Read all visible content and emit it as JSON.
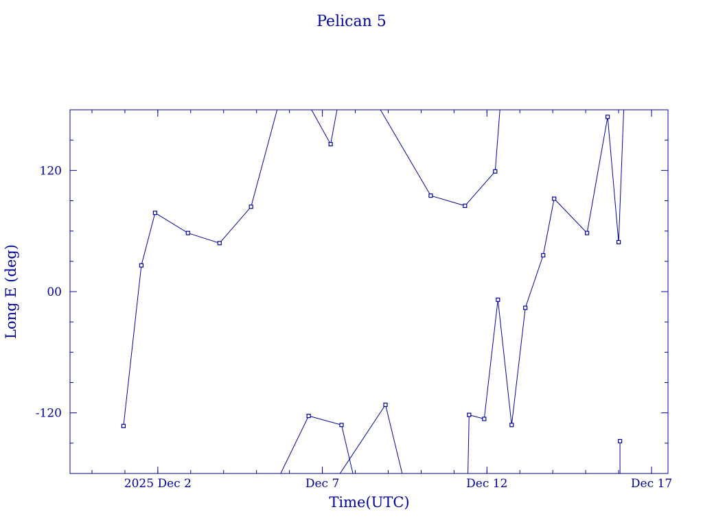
{
  "chart_data": {
    "type": "line",
    "title": "Pelican 5",
    "xlabel": "Time(UTC)",
    "ylabel": "Long E (deg)",
    "color": "#000099",
    "xlim": [
      "2025-11-29T08:00:00Z",
      "2025-12-17T12:00:00Z"
    ],
    "ylim": [
      -180,
      180
    ],
    "x_ticks": [
      {
        "t": "2025-12-02T00:00:00Z",
        "label": "2025 Dec  2"
      },
      {
        "t": "2025-12-07T00:00:00Z",
        "label": "Dec  7"
      },
      {
        "t": "2025-12-12T00:00:00Z",
        "label": "Dec 12"
      },
      {
        "t": "2025-12-17T00:00:00Z",
        "label": "Dec 17"
      }
    ],
    "y_ticks": [
      {
        "v": 120,
        "label": "120"
      },
      {
        "v": 0,
        "label": "00"
      },
      {
        "v": -120,
        "label": "-120"
      }
    ],
    "segments": [
      [
        [
          "2025-11-30T23:00:00Z",
          -133
        ],
        [
          "2025-12-01T12:00:00Z",
          26
        ],
        [
          "2025-12-01T22:00:00Z",
          78
        ],
        [
          "2025-12-02T22:00:00Z",
          58
        ],
        [
          "2025-12-03T21:00:00Z",
          48
        ],
        [
          "2025-12-04T20:00:00Z",
          84
        ],
        [
          "2025-12-05T17:00:00Z",
          190
        ]
      ],
      [
        [
          "2025-12-05T14:00:00Z",
          -190
        ],
        [
          "2025-12-06T14:00:00Z",
          -123
        ],
        [
          "2025-12-07T14:00:00Z",
          -132
        ],
        [
          "2025-12-08T00:00:00Z",
          -190
        ]
      ],
      [
        [
          "2025-12-06T12:00:00Z",
          190
        ],
        [
          "2025-12-07T06:00:00Z",
          146
        ],
        [
          "2025-12-07T12:00:00Z",
          190
        ]
      ],
      [
        [
          "2025-12-07T08:00:00Z",
          -190
        ],
        [
          "2025-12-08T22:00:00Z",
          -112
        ],
        [
          "2025-12-09T12:00:00Z",
          -190
        ]
      ],
      [
        [
          "2025-12-08T14:00:00Z",
          190
        ],
        [
          "2025-12-10T07:00:00Z",
          95
        ],
        [
          "2025-12-11T08:00:00Z",
          85
        ],
        [
          "2025-12-12T06:00:00Z",
          119
        ],
        [
          "2025-12-12T10:00:00Z",
          190
        ]
      ],
      [
        [
          "2025-12-11T10:00:00Z",
          -190
        ],
        [
          "2025-12-11T11:00:00Z",
          -122
        ],
        [
          "2025-12-11T22:00:00Z",
          -126
        ],
        [
          "2025-12-12T08:00:00Z",
          -8
        ],
        [
          "2025-12-12T18:00:00Z",
          -132
        ],
        [
          "2025-12-13T04:00:00Z",
          -16
        ],
        [
          "2025-12-13T17:00:00Z",
          36
        ],
        [
          "2025-12-14T01:00:00Z",
          92
        ],
        [
          "2025-12-15T01:00:00Z",
          58
        ],
        [
          "2025-12-15T16:00:00Z",
          173
        ],
        [
          "2025-12-16T00:00:00Z",
          49
        ],
        [
          "2025-12-16T04:00:00Z",
          190
        ]
      ],
      [
        [
          "2025-12-16T01:00:00Z",
          -148
        ],
        [
          "2025-12-16T01:00:00Z",
          -190
        ]
      ]
    ]
  }
}
